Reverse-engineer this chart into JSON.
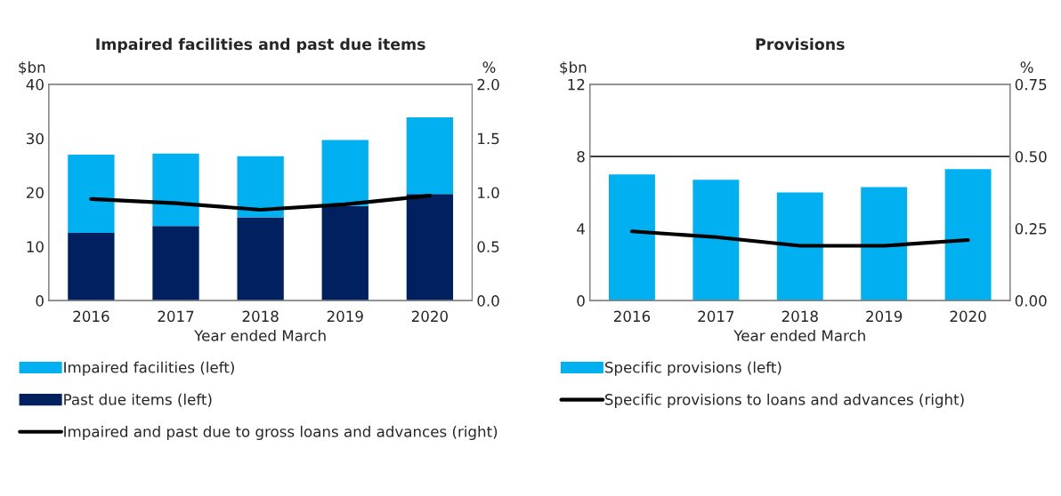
{
  "chart_data": [
    {
      "type": "bar",
      "title": "Impaired facilities and past due items",
      "xlabel": "Year ended March",
      "ylabel": "$bn",
      "y2label": "%",
      "categories": [
        "2016",
        "2017",
        "2018",
        "2019",
        "2020"
      ],
      "stacked": true,
      "series": [
        {
          "name": "Past due items (left)",
          "color": "#002060",
          "values": [
            12.5,
            13.8,
            15.4,
            17.5,
            19.7
          ]
        },
        {
          "name": "Impaired facilities (left)",
          "color": "#00b0f0",
          "values": [
            14.5,
            13.4,
            11.3,
            12.2,
            14.2
          ]
        },
        {
          "name": "Impaired and past due to gross loans and advances (right)",
          "type": "line",
          "axis": "y2",
          "color": "#000000",
          "values": [
            0.94,
            0.9,
            0.84,
            0.89,
            0.97
          ]
        }
      ],
      "ylim": [
        0,
        40
      ],
      "yticks": [
        0,
        10,
        20,
        30,
        40
      ],
      "y2lim": [
        0,
        2
      ],
      "y2ticks": [
        {
          "value": 0,
          "label": "0.0"
        },
        {
          "value": 0.5,
          "label": "0.5"
        },
        {
          "value": 1,
          "label": "1.0"
        },
        {
          "value": 1.5,
          "label": "1.5"
        },
        {
          "value": 2,
          "label": "2.0"
        }
      ],
      "legend": "bottom"
    },
    {
      "type": "bar",
      "title": "Provisions",
      "xlabel": "Year ended March",
      "ylabel": "$bn",
      "y2label": "%",
      "categories": [
        "2016",
        "2017",
        "2018",
        "2019",
        "2020"
      ],
      "series": [
        {
          "name": "Specific provisions (left)",
          "color": "#00b0f0",
          "values": [
            7.0,
            6.7,
            6.0,
            6.3,
            7.3
          ]
        },
        {
          "name": "Specific provisions to loans and advances (right)",
          "type": "line",
          "axis": "y2",
          "color": "#000000",
          "values": [
            0.24,
            0.22,
            0.19,
            0.19,
            0.21
          ]
        }
      ],
      "ylim": [
        0,
        12
      ],
      "yticks": [
        0,
        4,
        8,
        12
      ],
      "y2lim": [
        0,
        0.75
      ],
      "y2ticks": [
        {
          "value": 0,
          "label": "0.00"
        },
        {
          "value": 0.25,
          "label": "0.25"
        },
        {
          "value": 0.5,
          "label": "0.50"
        },
        {
          "value": 0.75,
          "label": "0.75"
        }
      ],
      "ref_lines": [
        {
          "axis": "y",
          "value": 8,
          "color": "#000000"
        }
      ],
      "legend": "bottom"
    }
  ]
}
